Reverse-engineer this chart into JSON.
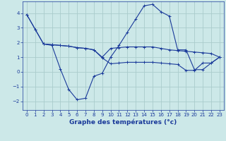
{
  "xlabel": "Graphe des températures (°c)",
  "bg_color": "#cce8e8",
  "grid_color": "#aacccc",
  "line_color": "#1a3a9a",
  "ylim": [
    -2.6,
    4.8
  ],
  "xlim": [
    -0.5,
    23.5
  ],
  "yticks": [
    -2,
    -1,
    0,
    1,
    2,
    3,
    4
  ],
  "xticks": [
    0,
    1,
    2,
    3,
    4,
    5,
    6,
    7,
    8,
    9,
    10,
    11,
    12,
    13,
    14,
    15,
    16,
    17,
    18,
    19,
    20,
    21,
    22,
    23
  ],
  "line1_x": [
    0,
    1,
    2,
    3,
    4,
    5,
    6,
    7,
    8,
    9,
    10,
    11,
    12,
    13,
    14,
    15,
    16,
    17,
    18,
    19,
    20,
    21,
    22,
    23
  ],
  "line1_y": [
    3.9,
    2.9,
    1.9,
    1.8,
    0.2,
    -1.2,
    -1.9,
    -1.8,
    -0.3,
    -0.1,
    1.0,
    1.8,
    2.7,
    3.6,
    4.5,
    4.6,
    4.1,
    3.8,
    1.5,
    1.5,
    0.15,
    0.15,
    0.6,
    1.0
  ],
  "line2_x": [
    0,
    1,
    2,
    3,
    4,
    5,
    6,
    7,
    8,
    9,
    10,
    11,
    12,
    13,
    14,
    15,
    16,
    17,
    18,
    19,
    20,
    21,
    22,
    23
  ],
  "line2_y": [
    3.9,
    2.9,
    1.9,
    1.85,
    1.8,
    1.75,
    1.65,
    1.6,
    1.5,
    1.0,
    1.6,
    1.65,
    1.7,
    1.7,
    1.7,
    1.7,
    1.6,
    1.5,
    1.45,
    1.4,
    1.35,
    1.3,
    1.25,
    1.0
  ],
  "line3_x": [
    2,
    3,
    4,
    5,
    6,
    7,
    8,
    9,
    10,
    11,
    12,
    13,
    14,
    15,
    16,
    17,
    18,
    19,
    20,
    21,
    22,
    23
  ],
  "line3_y": [
    1.9,
    1.85,
    1.8,
    1.75,
    1.65,
    1.6,
    1.5,
    0.95,
    0.55,
    0.6,
    0.65,
    0.65,
    0.65,
    0.65,
    0.6,
    0.55,
    0.5,
    0.1,
    0.1,
    0.6,
    0.6,
    1.0
  ]
}
